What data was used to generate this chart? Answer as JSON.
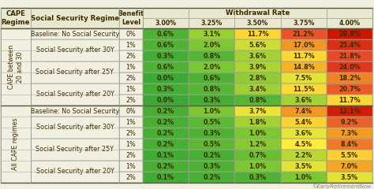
{
  "section1_label": "CAPE between\n20 and 30",
  "section2_label": "All CAPE regimes",
  "rows": [
    [
      "Baseline: No Social Security",
      "0%",
      "0.6%",
      "3.1%",
      "11.7%",
      "21.2%",
      "28.8%"
    ],
    [
      "Social Security after 30Y",
      "1%",
      "0.6%",
      "2.0%",
      "5.6%",
      "17.0%",
      "25.4%"
    ],
    [
      "Social Security after 30Y",
      "2%",
      "0.3%",
      "0.8%",
      "3.6%",
      "11.7%",
      "21.8%"
    ],
    [
      "Social Security after 25Y",
      "1%",
      "0.6%",
      "2.0%",
      "3.9%",
      "14.8%",
      "24.0%"
    ],
    [
      "Social Security after 25Y",
      "2%",
      "0.0%",
      "0.6%",
      "2.8%",
      "7.5%",
      "18.2%"
    ],
    [
      "Social Security after 20Y",
      "1%",
      "0.3%",
      "0.8%",
      "3.4%",
      "11.5%",
      "20.7%"
    ],
    [
      "Social Security after 20Y",
      "2%",
      "0.0%",
      "0.3%",
      "0.8%",
      "3.6%",
      "11.7%"
    ],
    [
      "Baseline: No Social Security",
      "0%",
      "0.2%",
      "1.0%",
      "3.7%",
      "7.4%",
      "12.1%"
    ],
    [
      "Social Security after 30Y",
      "1%",
      "0.2%",
      "0.5%",
      "1.8%",
      "5.4%",
      "9.2%"
    ],
    [
      "Social Security after 30Y",
      "2%",
      "0.2%",
      "0.3%",
      "1.0%",
      "3.6%",
      "7.3%"
    ],
    [
      "Social Security after 25Y",
      "1%",
      "0.2%",
      "0.5%",
      "1.2%",
      "4.5%",
      "8.4%"
    ],
    [
      "Social Security after 25Y",
      "2%",
      "0.1%",
      "0.2%",
      "0.7%",
      "2.2%",
      "5.5%"
    ],
    [
      "Social Security after 20Y",
      "1%",
      "0.2%",
      "0.3%",
      "1.0%",
      "3.5%",
      "7.0%"
    ],
    [
      "Social Security after 20Y",
      "2%",
      "0.1%",
      "0.2%",
      "0.3%",
      "1.0%",
      "3.5%"
    ]
  ],
  "cell_values": [
    [
      0.6,
      3.1,
      11.7,
      21.2,
      28.8
    ],
    [
      0.6,
      2.0,
      5.6,
      17.0,
      25.4
    ],
    [
      0.3,
      0.8,
      3.6,
      11.7,
      21.8
    ],
    [
      0.6,
      2.0,
      3.9,
      14.8,
      24.0
    ],
    [
      0.0,
      0.6,
      2.8,
      7.5,
      18.2
    ],
    [
      0.3,
      0.8,
      3.4,
      11.5,
      20.7
    ],
    [
      0.0,
      0.3,
      0.8,
      3.6,
      11.7
    ],
    [
      0.2,
      1.0,
      3.7,
      7.4,
      12.1
    ],
    [
      0.2,
      0.5,
      1.8,
      5.4,
      9.2
    ],
    [
      0.2,
      0.3,
      1.0,
      3.6,
      7.3
    ],
    [
      0.2,
      0.5,
      1.2,
      4.5,
      8.4
    ],
    [
      0.1,
      0.2,
      0.7,
      2.2,
      5.5
    ],
    [
      0.2,
      0.3,
      1.0,
      3.5,
      7.0
    ],
    [
      0.1,
      0.2,
      0.3,
      1.0,
      3.5
    ]
  ],
  "color_stops": [
    [
      0.0,
      "#3aaa35"
    ],
    [
      2.0,
      "#7dc832"
    ],
    [
      5.0,
      "#c8dc32"
    ],
    [
      10.0,
      "#ffeb3b"
    ],
    [
      16.0,
      "#f5a623"
    ],
    [
      22.0,
      "#e8472a"
    ],
    [
      29.0,
      "#cc1500"
    ]
  ],
  "color_stops2": [
    [
      0.0,
      "#3aaa35"
    ],
    [
      1.0,
      "#7dc832"
    ],
    [
      2.5,
      "#c8dc32"
    ],
    [
      4.5,
      "#ffeb3b"
    ],
    [
      7.0,
      "#f5a623"
    ],
    [
      10.0,
      "#e8472a"
    ],
    [
      12.5,
      "#cc1500"
    ]
  ],
  "bg_color": "#f0efe0",
  "header_bg": "#e8e7d0",
  "left_col_bg": "#f0efe0",
  "text_color": "#3d2b00",
  "border_color": "#999988",
  "font_size": 5.8,
  "header_font_size": 6.2,
  "watermark": "©EarlyRetirementNow",
  "wd_labels": [
    "3.00%",
    "3.25%",
    "3.50%",
    "3.75%",
    "4.00%"
  ]
}
